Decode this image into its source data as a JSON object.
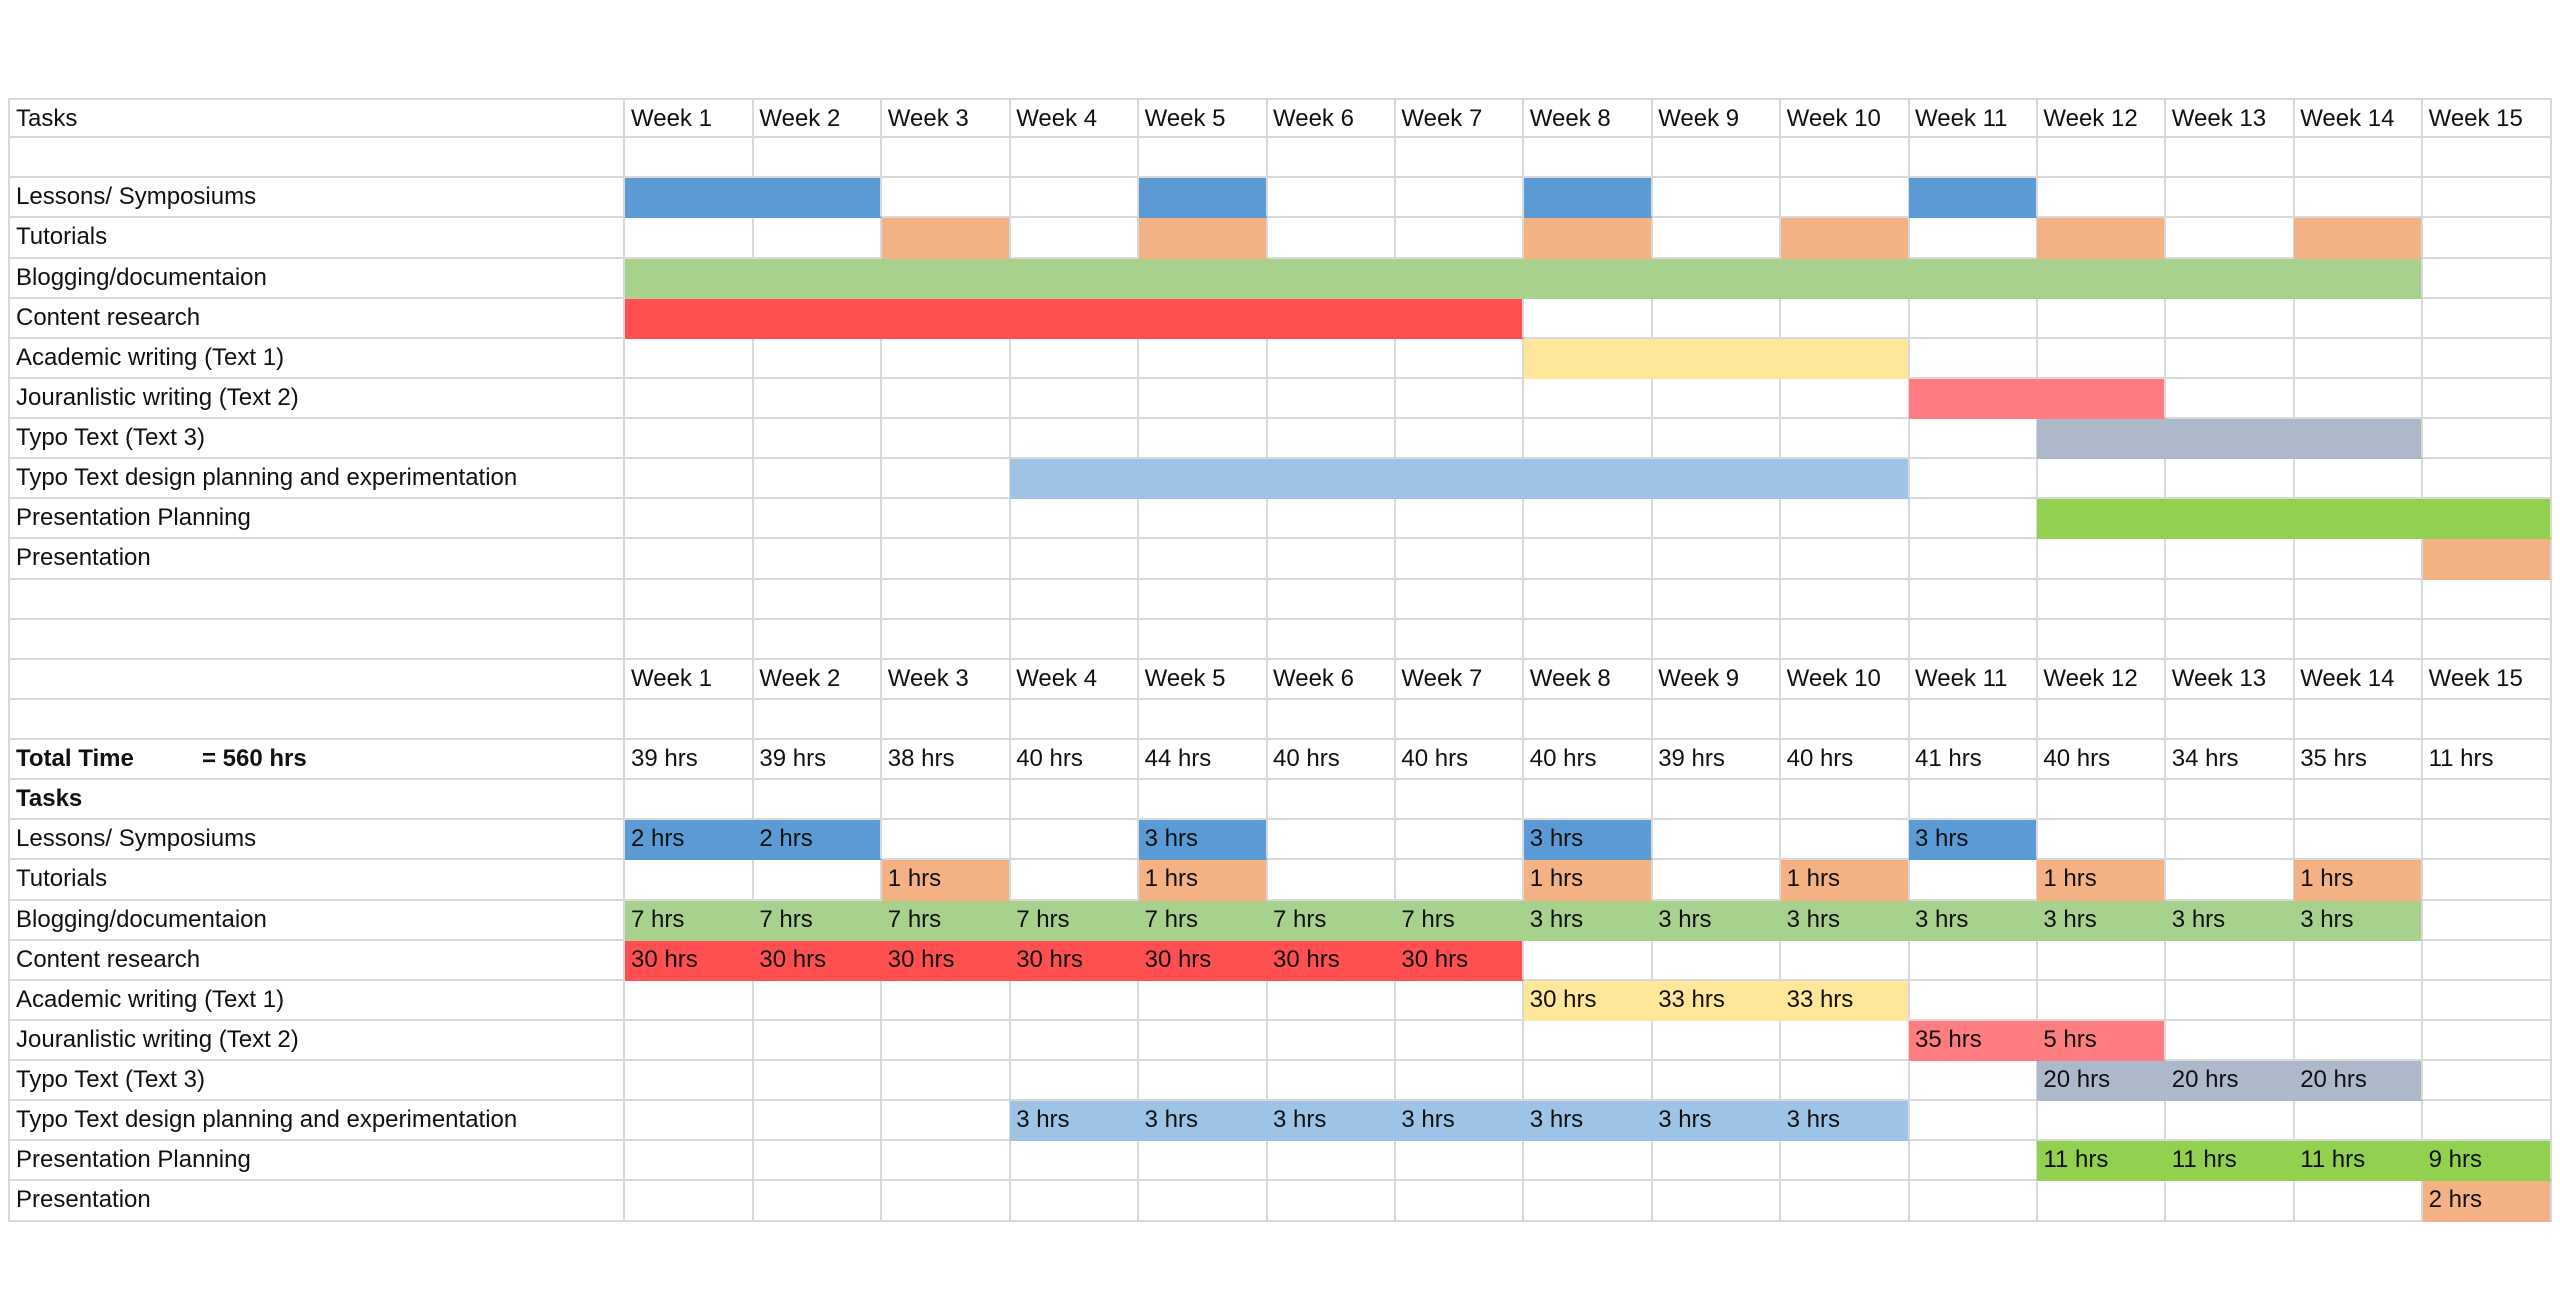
{
  "colors": {
    "lessons": "#5b9bd5",
    "tutorials": "#f4b183",
    "blogging": "#a9d18e",
    "content_research": "#ff4f50",
    "academic": "#ffe699",
    "journalistic": "#ff7c80",
    "typo_text": "#adb9ca",
    "typo_design": "#9dc3e6",
    "presentation_planning": "#92d050",
    "presentation": "#f4b183",
    "grid": "#d9d9d9"
  },
  "weeks": [
    "Week 1",
    "Week 2",
    "Week 3",
    "Week 4",
    "Week 5",
    "Week 6",
    "Week 7",
    "Week 8",
    "Week 9",
    "Week 10",
    "Week 11",
    "Week 12",
    "Week 13",
    "Week 14",
    "Week 15"
  ],
  "gantt": {
    "header_label": "Tasks",
    "tasks": [
      {
        "name": "Lessons/ Symposiums",
        "color_key": "lessons",
        "weeks": [
          1,
          2,
          5,
          8,
          11
        ]
      },
      {
        "name": "Tutorials",
        "color_key": "tutorials",
        "weeks": [
          3,
          5,
          8,
          10,
          12,
          14
        ]
      },
      {
        "name": "Blogging/documentaion",
        "color_key": "blogging",
        "weeks": [
          1,
          2,
          3,
          4,
          5,
          6,
          7,
          8,
          9,
          10,
          11,
          12,
          13,
          14
        ]
      },
      {
        "name": "Content research",
        "color_key": "content_research",
        "weeks": [
          1,
          2,
          3,
          4,
          5,
          6,
          7
        ]
      },
      {
        "name": "Academic writing (Text 1)",
        "color_key": "academic",
        "weeks": [
          8,
          9,
          10
        ]
      },
      {
        "name": "Jouranlistic writing (Text 2)",
        "color_key": "journalistic",
        "weeks": [
          11,
          12
        ]
      },
      {
        "name": "Typo Text (Text 3)",
        "color_key": "typo_text",
        "weeks": [
          12,
          13,
          14
        ]
      },
      {
        "name": "Typo Text design planning and experimentation",
        "color_key": "typo_design",
        "weeks": [
          4,
          5,
          6,
          7,
          8,
          9,
          10
        ]
      },
      {
        "name": "Presentation Planning",
        "color_key": "presentation_planning",
        "weeks": [
          12,
          13,
          14,
          15
        ]
      },
      {
        "name": "Presentation",
        "color_key": "presentation",
        "weeks": [
          15
        ]
      }
    ]
  },
  "hours": {
    "total_label": "Total Time",
    "total_value": "= 560 hrs",
    "tasks_label": "Tasks",
    "weekly_totals": [
      "39 hrs",
      "39 hrs",
      "38 hrs",
      "40 hrs",
      "44 hrs",
      "40 hrs",
      "40 hrs",
      "40 hrs",
      "39 hrs",
      "40 hrs",
      "41 hrs",
      "40 hrs",
      "34 hrs",
      "35 hrs",
      "11 hrs"
    ],
    "tasks": [
      {
        "name": "Lessons/ Symposiums",
        "color_key": "lessons",
        "cells": [
          "2 hrs",
          "2 hrs",
          "",
          "",
          "3 hrs",
          "",
          "",
          "3 hrs",
          "",
          "",
          "3 hrs",
          "",
          "",
          "",
          ""
        ]
      },
      {
        "name": "Tutorials",
        "color_key": "tutorials",
        "cells": [
          "",
          "",
          "1 hrs",
          "",
          "1 hrs",
          "",
          "",
          "1 hrs",
          "",
          "1 hrs",
          "",
          "1 hrs",
          "",
          "1 hrs",
          ""
        ]
      },
      {
        "name": "Blogging/documentaion",
        "color_key": "blogging",
        "cells": [
          "7 hrs",
          "7 hrs",
          "7 hrs",
          "7 hrs",
          "7 hrs",
          "7 hrs",
          "7 hrs",
          "3 hrs",
          "3 hrs",
          "3 hrs",
          "3 hrs",
          "3 hrs",
          "3 hrs",
          "3 hrs",
          ""
        ]
      },
      {
        "name": "Content research",
        "color_key": "content_research",
        "cells": [
          "30 hrs",
          "30 hrs",
          "30 hrs",
          "30 hrs",
          "30 hrs",
          "30 hrs",
          "30 hrs",
          "",
          "",
          "",
          "",
          "",
          "",
          "",
          ""
        ]
      },
      {
        "name": "Academic writing (Text 1)",
        "color_key": "academic",
        "cells": [
          "",
          "",
          "",
          "",
          "",
          "",
          "",
          "30 hrs",
          "33 hrs",
          "33 hrs",
          "",
          "",
          "",
          "",
          ""
        ]
      },
      {
        "name": "Jouranlistic writing (Text 2)",
        "color_key": "journalistic",
        "cells": [
          "",
          "",
          "",
          "",
          "",
          "",
          "",
          "",
          "",
          "",
          "35 hrs",
          "5 hrs",
          "",
          "",
          ""
        ]
      },
      {
        "name": "Typo Text (Text 3)",
        "color_key": "typo_text",
        "cells": [
          "",
          "",
          "",
          "",
          "",
          "",
          "",
          "",
          "",
          "",
          "",
          "20 hrs",
          "20 hrs",
          "20 hrs",
          ""
        ]
      },
      {
        "name": "Typo Text design planning and experimentation",
        "color_key": "typo_design",
        "cells": [
          "",
          "",
          "",
          "3 hrs",
          "3 hrs",
          "3 hrs",
          "3 hrs",
          "3 hrs",
          "3 hrs",
          "3 hrs",
          "",
          "",
          "",
          "",
          ""
        ]
      },
      {
        "name": "Presentation Planning",
        "color_key": "presentation_planning",
        "cells": [
          "",
          "",
          "",
          "",
          "",
          "",
          "",
          "",
          "",
          "",
          "",
          "11 hrs",
          "11 hrs",
          "11 hrs",
          "9 hrs"
        ]
      },
      {
        "name": "Presentation",
        "color_key": "presentation",
        "cells": [
          "",
          "",
          "",
          "",
          "",
          "",
          "",
          "",
          "",
          "",
          "",
          "",
          "",
          "",
          "2 hrs"
        ]
      }
    ]
  },
  "chart_data": {
    "type": "table",
    "title": "Project schedule (Gantt) and weekly hours",
    "categories": [
      "Week 1",
      "Week 2",
      "Week 3",
      "Week 4",
      "Week 5",
      "Week 6",
      "Week 7",
      "Week 8",
      "Week 9",
      "Week 10",
      "Week 11",
      "Week 12",
      "Week 13",
      "Week 14",
      "Week 15"
    ],
    "total_hours": 560,
    "weekly_total_hours": [
      39,
      39,
      38,
      40,
      44,
      40,
      40,
      40,
      39,
      40,
      41,
      40,
      34,
      35,
      11
    ],
    "series": [
      {
        "name": "Lessons/ Symposiums",
        "values": [
          2,
          2,
          0,
          0,
          3,
          0,
          0,
          3,
          0,
          0,
          3,
          0,
          0,
          0,
          0
        ]
      },
      {
        "name": "Tutorials",
        "values": [
          0,
          0,
          1,
          0,
          1,
          0,
          0,
          1,
          0,
          1,
          0,
          1,
          0,
          1,
          0
        ]
      },
      {
        "name": "Blogging/documentaion",
        "values": [
          7,
          7,
          7,
          7,
          7,
          7,
          7,
          3,
          3,
          3,
          3,
          3,
          3,
          3,
          0
        ]
      },
      {
        "name": "Content research",
        "values": [
          30,
          30,
          30,
          30,
          30,
          30,
          30,
          0,
          0,
          0,
          0,
          0,
          0,
          0,
          0
        ]
      },
      {
        "name": "Academic writing (Text 1)",
        "values": [
          0,
          0,
          0,
          0,
          0,
          0,
          0,
          30,
          33,
          33,
          0,
          0,
          0,
          0,
          0
        ]
      },
      {
        "name": "Jouranlistic writing (Text 2)",
        "values": [
          0,
          0,
          0,
          0,
          0,
          0,
          0,
          0,
          0,
          0,
          35,
          5,
          0,
          0,
          0
        ]
      },
      {
        "name": "Typo Text (Text 3)",
        "values": [
          0,
          0,
          0,
          0,
          0,
          0,
          0,
          0,
          0,
          0,
          0,
          20,
          20,
          20,
          0
        ]
      },
      {
        "name": "Typo Text design planning and experimentation",
        "values": [
          0,
          0,
          0,
          3,
          3,
          3,
          3,
          3,
          3,
          3,
          0,
          0,
          0,
          0,
          0
        ]
      },
      {
        "name": "Presentation Planning",
        "values": [
          0,
          0,
          0,
          0,
          0,
          0,
          0,
          0,
          0,
          0,
          0,
          11,
          11,
          11,
          9
        ]
      },
      {
        "name": "Presentation",
        "values": [
          0,
          0,
          0,
          0,
          0,
          0,
          0,
          0,
          0,
          0,
          0,
          0,
          0,
          0,
          2
        ]
      }
    ],
    "xlabel": "Week",
    "ylabel": "Tasks",
    "unit": "hrs"
  }
}
